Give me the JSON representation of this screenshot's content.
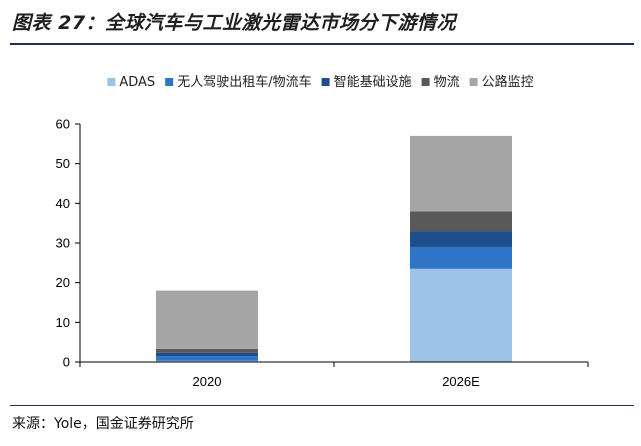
{
  "title": "图表 27：全球汽车与工业激光雷达市场分下游情况",
  "source": "来源：Yole，国金证券研究所",
  "chart_data": {
    "type": "bar",
    "stacked": true,
    "categories": [
      "2020",
      "2026E"
    ],
    "series": [
      {
        "name": "ADAS",
        "color": "#9dc3e6",
        "values": [
          0.3,
          23.5
        ]
      },
      {
        "name": "无人驾驶出租车/物流车",
        "color": "#2e75c8",
        "values": [
          1.2,
          5.5
        ]
      },
      {
        "name": "智能基础设施",
        "color": "#1f4e8c",
        "values": [
          0.8,
          4.0
        ]
      },
      {
        "name": "物流",
        "color": "#595959",
        "values": [
          1.0,
          5.0
        ]
      },
      {
        "name": "公路监控",
        "color": "#a6a6a6",
        "values": [
          14.7,
          19.0
        ]
      }
    ],
    "y_ticks": [
      "0",
      "10",
      "20",
      "30",
      "40",
      "50",
      "60"
    ],
    "ylim": [
      0,
      60
    ],
    "grid": false,
    "legend_position": "top"
  }
}
